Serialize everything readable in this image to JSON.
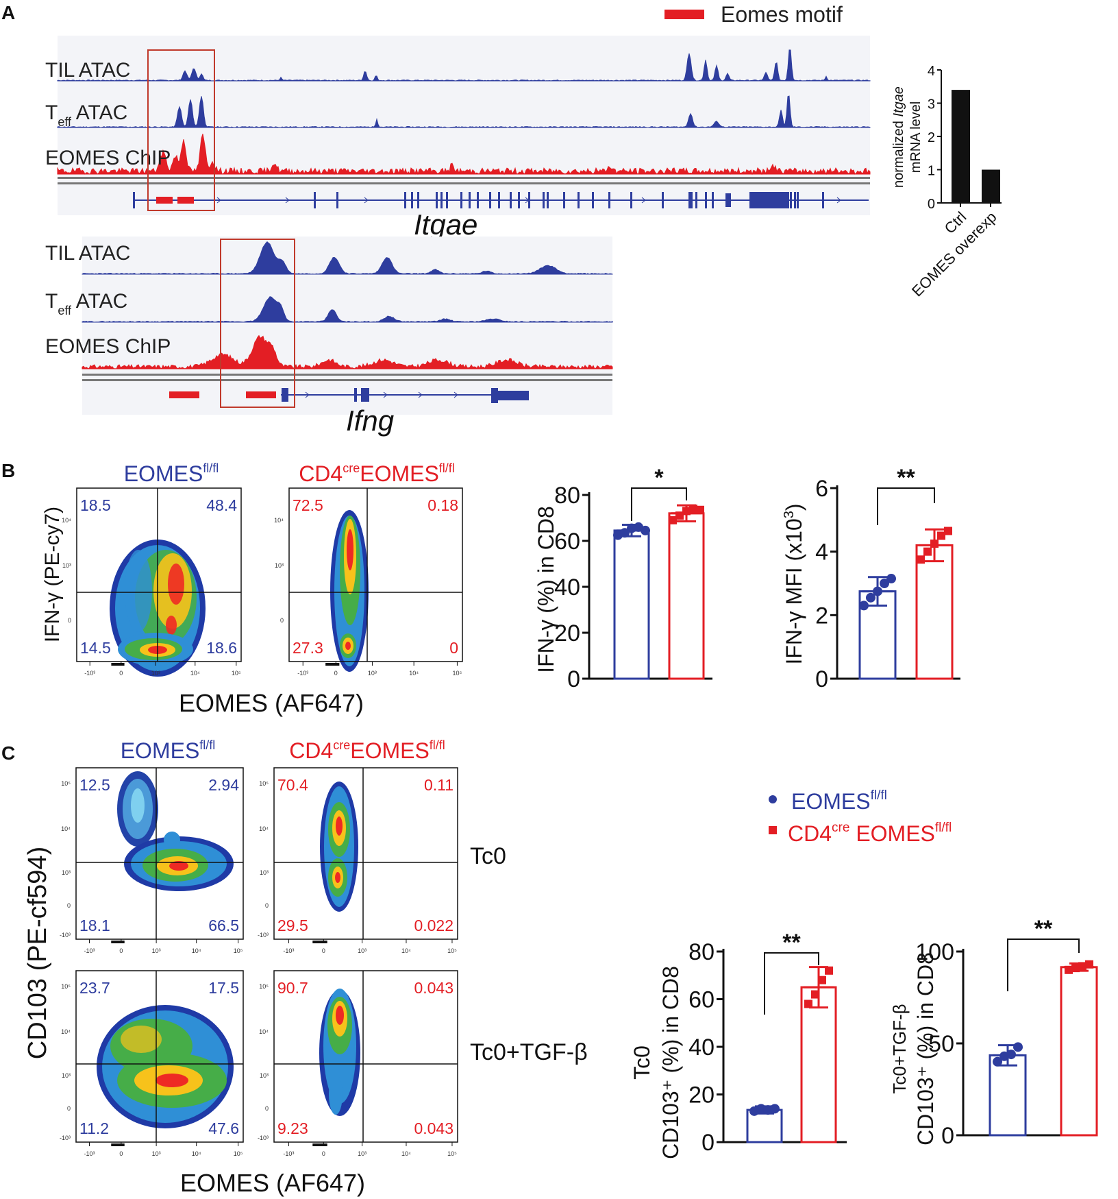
{
  "colors": {
    "blue": "#2e3d9e",
    "red": "#e31e24",
    "black": "#111111",
    "panelbg": "#f3f4f8"
  },
  "panelA": {
    "letter": "A",
    "legend": "Eomes motif",
    "itgae": {
      "tracks": [
        "TIL ATAC",
        "T",
        "EOMES ChIP"
      ],
      "teff_rest": " ATAC",
      "teff_sub": "eff",
      "gene": "Itgae"
    },
    "ifng": {
      "tracks": [
        "TIL ATAC",
        "T",
        "EOMES ChIP"
      ],
      "teff_rest": " ATAC",
      "teff_sub": "eff",
      "gene": "Ifng"
    }
  },
  "panelB": {
    "letter": "B"
  },
  "panelC": {
    "letter": "C"
  },
  "legendC": {
    "a_main": "EOMES",
    "a_sup": "fl/fl",
    "b_pre": "CD4",
    "b_cre": "cre",
    "b_main": " EOMES",
    "b_sup": "fl/fl"
  },
  "chart_data": [
    {
      "id": "itgae-bar",
      "type": "bar",
      "categories": [
        "Ctrl",
        "EOMES overexp"
      ],
      "values": [
        3.4,
        1.0
      ],
      "ylim": [
        0,
        4
      ],
      "yticks": [
        "0",
        "1",
        "2",
        "3",
        "4"
      ],
      "ylabel_pre": "normalized ",
      "ylabel_it": "Itgae",
      "ylabel2": "mRNA level"
    },
    {
      "id": "flow-B",
      "type": "scatter",
      "group_titles": [
        {
          "main": "EOMES",
          "pre": "",
          "cre": "",
          "sup": "fl/fl"
        },
        {
          "main": "EOMES",
          "pre": "CD4",
          "cre": "cre",
          "sup": "fl/fl"
        }
      ],
      "quadrants": [
        {
          "ul": "18.5",
          "ur": "48.4",
          "ll": "14.5",
          "lr": "18.6"
        },
        {
          "ul": "72.5",
          "ur": "0.18",
          "ll": "27.3",
          "lr": "0"
        }
      ],
      "ylabel": "IFN-γ (PE-cy7)",
      "xlabel": "EOMES (AF647)",
      "yticks": [
        "10⁴",
        "10³",
        "0"
      ],
      "xticks": [
        "-10³",
        "0",
        "10³",
        "10⁴",
        "10⁵"
      ]
    },
    {
      "id": "ifng-pct",
      "type": "bar",
      "categories": [
        "EOMES fl/fl",
        "CD4cre EOMES fl/fl"
      ],
      "values": [
        64.5,
        72.0
      ],
      "sd": [
        2.5,
        3.5
      ],
      "points": [
        [
          62.5,
          63.5,
          65.5,
          66,
          64.5
        ],
        [
          69,
          71,
          73,
          74,
          73.5
        ]
      ],
      "ylim": [
        0,
        80
      ],
      "yticks": [
        "0",
        "20",
        "40",
        "60",
        "80"
      ],
      "ylabel": "IFN-γ (%) in CD8",
      "sig": "*"
    },
    {
      "id": "ifng-mfi",
      "type": "bar",
      "categories": [
        "EOMES fl/fl",
        "CD4cre EOMES fl/fl"
      ],
      "values": [
        2.75,
        4.2
      ],
      "sd": [
        0.45,
        0.5
      ],
      "points": [
        [
          2.3,
          2.55,
          2.75,
          3.0,
          3.15
        ],
        [
          3.75,
          4.0,
          4.25,
          4.5,
          4.65
        ]
      ],
      "ylim": [
        0,
        6
      ],
      "yticks": [
        "0",
        "2",
        "4",
        "6"
      ],
      "ylabel": "IFN-γ  MFI (x10",
      "ylabel_sup": "3",
      "ylabel_end": ")",
      "sig": "**"
    },
    {
      "id": "flow-C",
      "type": "scatter",
      "group_titles": [
        {
          "main": "EOMES",
          "pre": "",
          "cre": "",
          "sup": "fl/fl"
        },
        {
          "main": "EOMES",
          "pre": "CD4",
          "cre": "cre",
          "sup": "fl/fl"
        }
      ],
      "row_labels": [
        "Tc0",
        "Tc0+TGF-β"
      ],
      "quadrants": [
        {
          "ul": "12.5",
          "ur": "2.94",
          "ll": "18.1",
          "lr": "66.5"
        },
        {
          "ul": "70.4",
          "ur": "0.11",
          "ll": "29.5",
          "lr": "0.022"
        },
        {
          "ul": "23.7",
          "ur": "17.5",
          "ll": "11.2",
          "lr": "47.6"
        },
        {
          "ul": "90.7",
          "ur": "0.043",
          "ll": "9.23",
          "lr": "0.043"
        }
      ],
      "ylabel": "CD103 (PE-cf594)",
      "xlabel": "EOMES (AF647)",
      "yticks": [
        "10⁵",
        "10⁴",
        "10³",
        "0",
        "-10³"
      ],
      "xticks": [
        "-10³",
        "0",
        "10³",
        "10⁴",
        "10⁵"
      ]
    },
    {
      "id": "tc0-cd103",
      "type": "bar",
      "categories": [
        "EOMES fl/fl",
        "CD4cre EOMES fl/fl"
      ],
      "values": [
        13.5,
        65.0
      ],
      "sd": [
        1.5,
        8.5
      ],
      "points": [
        [
          13,
          14,
          13.5,
          14
        ],
        [
          58,
          62,
          68,
          72
        ]
      ],
      "ylim": [
        0,
        80
      ],
      "yticks": [
        "0",
        "20",
        "40",
        "60",
        "80"
      ],
      "ylabel_top": "Tc0",
      "ylabel": "CD103⁺ (%) in CD8",
      "sig": "**"
    },
    {
      "id": "tgfb-cd103",
      "type": "bar",
      "categories": [
        "EOMES fl/fl",
        "CD4cre EOMES fl/fl"
      ],
      "values": [
        43.5,
        91.5
      ],
      "sd": [
        5.5,
        2.0
      ],
      "points": [
        [
          40,
          43,
          44,
          48
        ],
        [
          90,
          91,
          92,
          93
        ]
      ],
      "ylim": [
        0,
        100
      ],
      "yticks": [
        "0",
        "50",
        "100"
      ],
      "ylabel_top": "Tc0+TGF-β",
      "ylabel": "CD103⁺ (%) in CD8",
      "sig": "**"
    }
  ]
}
